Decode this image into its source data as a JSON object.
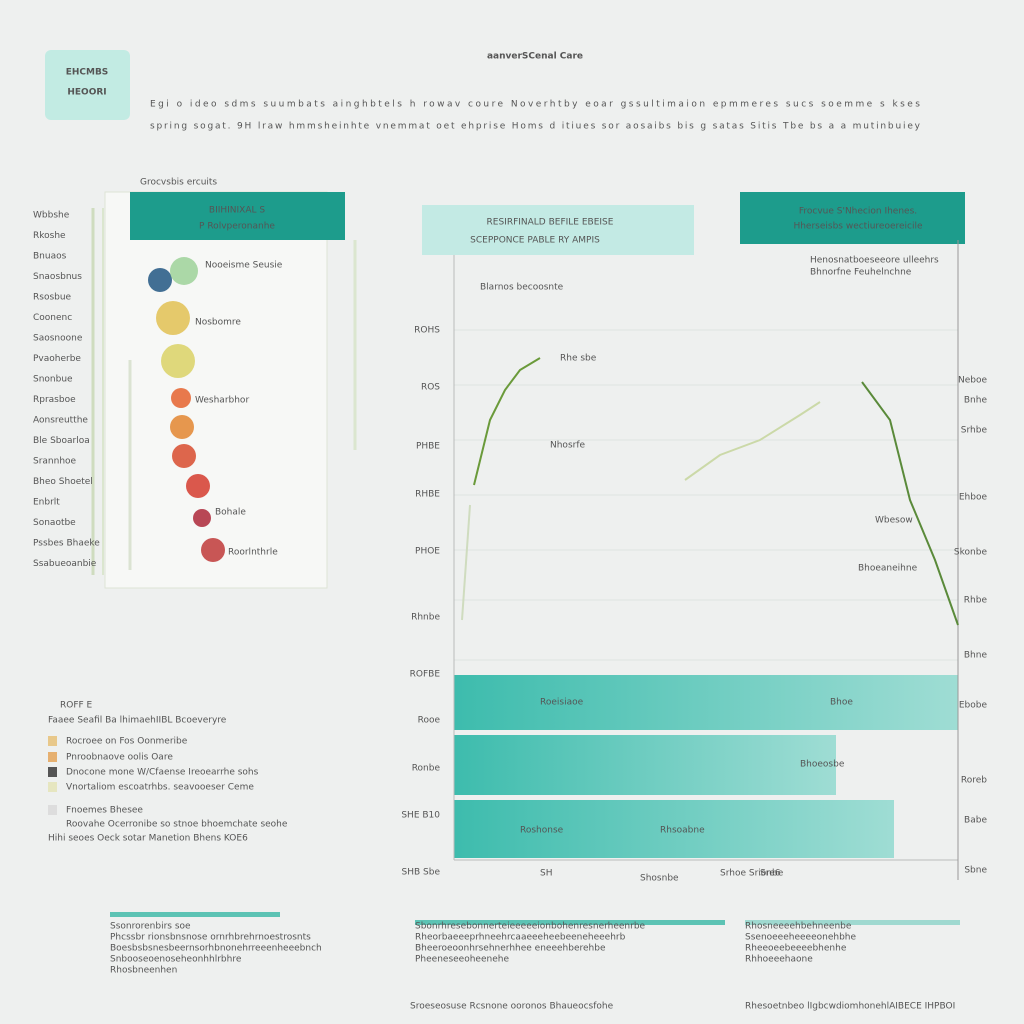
{
  "header": {
    "logo": [
      "EHCMBS",
      "HEOORI"
    ],
    "title": "aanverSCenal Care",
    "subtitle": [
      "Egi o ideo sdms suumbats ainghbtels h rowav coure Noverhtby eoar gssultimaion epmmeres sucs soemme s kses",
      "spring sogat. 9H lraw hmmsheinhte vnemmat oet ehprise Homs d itiues sor aosaibs bis g satas Sitis Tbe bs a a mutinbuiey"
    ]
  },
  "left_panel": {
    "tag": "Grocvsbis ercuits",
    "header": [
      "BIIHINIXAL S",
      "P Rolvperonanhe"
    ],
    "side_labels": [
      "Wbbshe",
      "Rkoshe",
      "Bnuaos",
      "Snaosbnus",
      "Rsosbue",
      "Coonenc",
      "Saosnoone",
      "Pvaoherbe",
      "Snonbue",
      "Rprasboe",
      "Aonsreutthe",
      "Ble Sboarloa",
      "Srannhoe",
      "Bheo Shoetel",
      "Enbrlt",
      "Sonaotbe",
      "Pssbes Bhaeke",
      "Ssabueoanbie"
    ],
    "ball_labels": [
      "Nooeisme Seusie",
      "Nosbomre",
      "Wesharbhor",
      "Bohale",
      "Roorlnthrle"
    ]
  },
  "legend": {
    "title": "ROFF E",
    "heading": "Faaee Seafil Ba lhimaehIIBL Bcoeveryre",
    "items": [
      "Rocroee on Fos Oonmeribe",
      "Pnroobnaove oolis Oare",
      "Dnocone mone W/Cfaense Ireoearrhe sohs",
      "Vnortaliom escoatrhbs. seavooeser Ceme",
      "Fnoemes Bhesee"
    ],
    "notes": [
      "Roovahe Ocerronibe so stnoe bhoemchate seohe"
    ],
    "footer": "Hihi seoes Oeck sotar Manetion Bhens KOE6"
  },
  "chart_panel": {
    "banner": [
      "RESIRFINALD BEFILE EBEISE",
      "SCEPPONCE PABLE RY AMPIS"
    ],
    "badge": [
      "Frocvue S'Nhecion Ihenes.",
      "Hherseisbs wectiureoereicile"
    ],
    "notes": [
      "Blarnos becoosnte",
      "Henosnatboeseeore ulleehrs",
      "Bhnorfne Feuhelnchne"
    ],
    "y_labels": [
      "ROHS",
      "ROS",
      "PHBE",
      "RHBE",
      "PHOE",
      "Rhnbe",
      "ROFBE",
      "Rooe",
      "Ronbe",
      "SHE B10",
      "SHB Sbe"
    ],
    "annotations": [
      "Rhe sbe",
      "Nhosrfe",
      "Wbesow",
      "Bhoeaneihne"
    ],
    "right_labels": [
      "Neboe",
      "Bnhe",
      "Srhbe",
      "Ehboe",
      "Skonbe",
      "Rhbe",
      "Bhne",
      "Ebobe",
      "Roreb",
      "Babe",
      "Sbne"
    ],
    "bar_labels": [
      "Roeisiaoe",
      "Bhoeosbe",
      "Roshonse",
      "Rhsoabne",
      "Bhoe"
    ],
    "x_labels": [
      "SH",
      "Shosnbe",
      "Srhoe Srionbe",
      "Sre6"
    ]
  },
  "footer": {
    "columns": [
      {
        "lines": [
          "Ssonrorenbirs soe",
          "Phcssbr rionsbnsnose ornrhbrehrnoestrosnts",
          "Boesbsbsnesbeernsorhbnonehrreeenheeebnch",
          "Snbooseoenoseheonhhlrbhre",
          "Rhosbneenhen"
        ]
      },
      {
        "lines": [
          "Sbonrhresebonnerteieeeeeionbohenresnerheenrbe",
          "Rheorbaeeeprhneehrcaaeeeheebeeneheeehrb",
          "Bheeroeoonhrsehnerhhee eneeehberehbe",
          "Pheeneseeoheenehe"
        ]
      },
      {
        "lines": [
          "Rhosneeeehbehneenbe",
          "Ssenoeeeheeeeonehbhe",
          "Rheeoeebeeeebhenhe",
          "Rhhoeeehaone"
        ]
      }
    ],
    "bottom": [
      "Sroeseosuse Rcsnone ooronos Bhaueocsfohe",
      "Rhesoetnbeo lIgbcwdiomhonehlAIBECE IHPBOI"
    ]
  }
}
